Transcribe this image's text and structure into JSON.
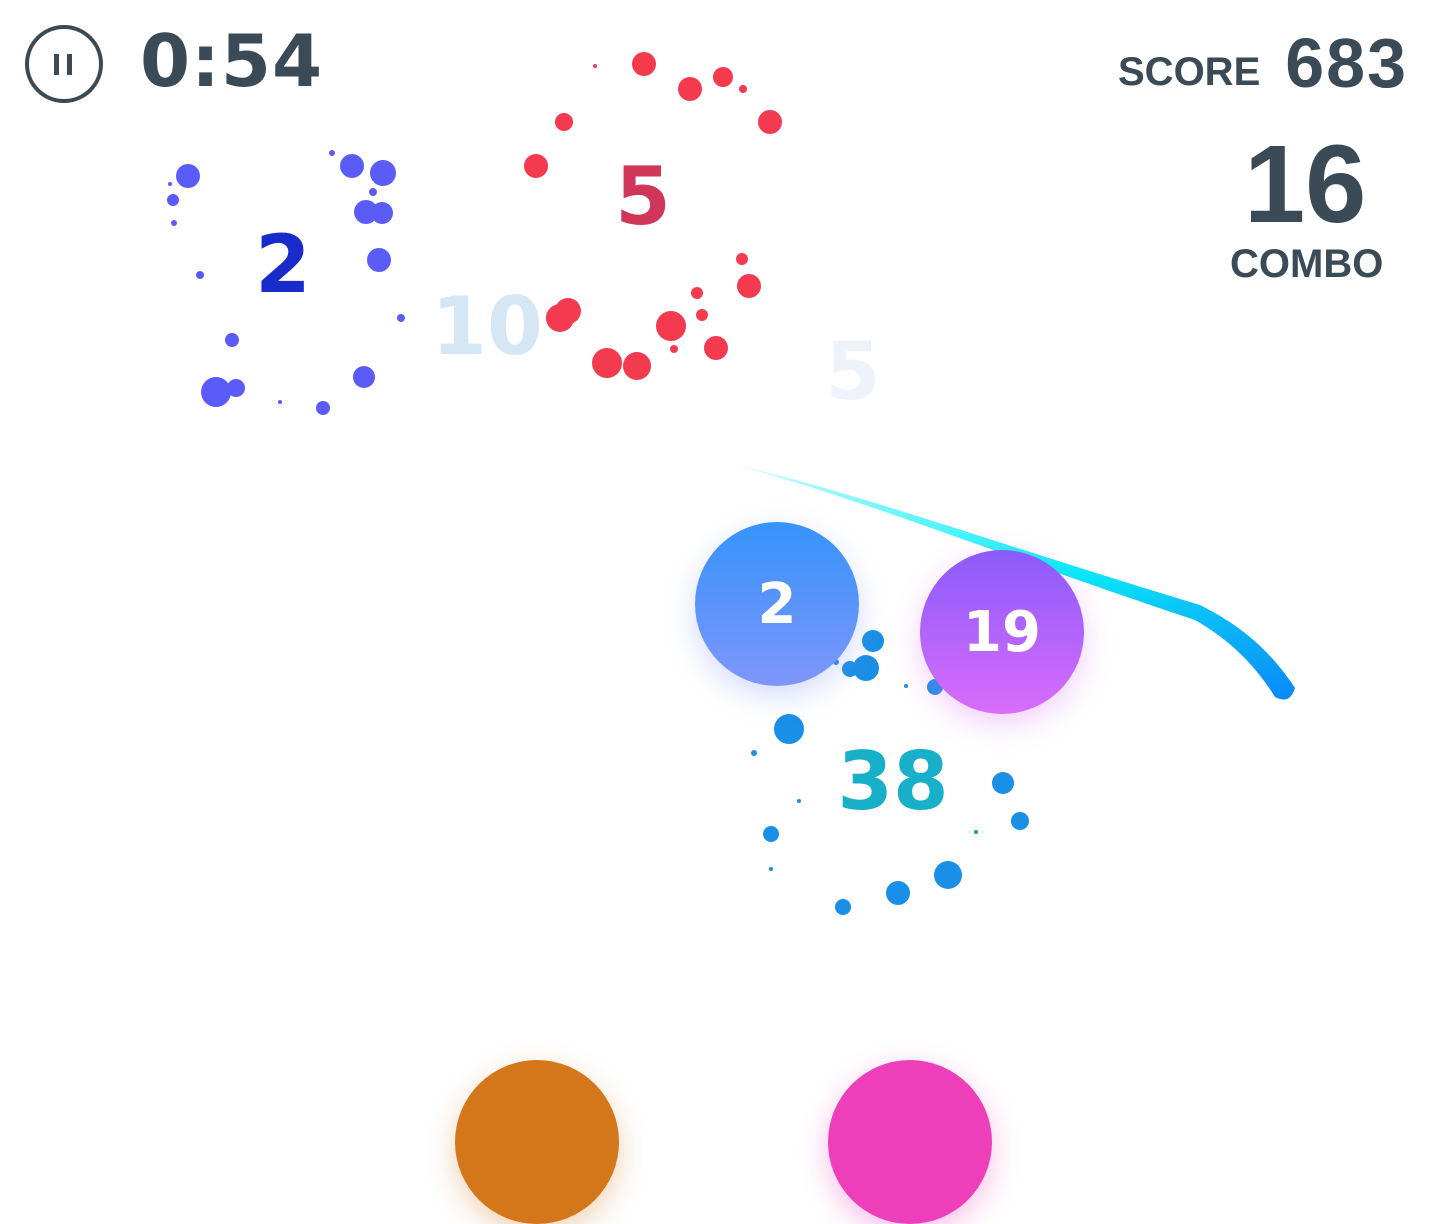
{
  "hud": {
    "pause_icon": "pause-icon",
    "timer": "0:54",
    "score_label": "SCORE",
    "score_value": "683",
    "combo_value": "16",
    "combo_label": "COMBO"
  },
  "popups": [
    {
      "text": "2",
      "color": "#1a2bcc"
    },
    {
      "text": "5",
      "color": "#d0365a"
    },
    {
      "text": "10",
      "color": "#d5e6f5"
    },
    {
      "text": "5",
      "color": "#eef3fb"
    },
    {
      "text": "38",
      "color": "#18b0c8"
    }
  ],
  "bubbles": [
    {
      "value": "2",
      "color_top": "#3594fb",
      "color_bottom": "#7f95fb"
    },
    {
      "value": "19",
      "color_top": "#8a5bfb",
      "color_bottom": "#d96cfb"
    },
    {
      "value": "",
      "color_top": "#d4761a",
      "color_bottom": "#d4761a"
    },
    {
      "value": "",
      "color_top": "#ee3fbb",
      "color_bottom": "#ee3fbb"
    }
  ],
  "particle_colors": {
    "blue_violet": "#5b5cf7",
    "red": "#f43a4f",
    "azure": "#1a8fe6"
  },
  "trail_colors": [
    "#0af0f8",
    "#0a88f8"
  ]
}
